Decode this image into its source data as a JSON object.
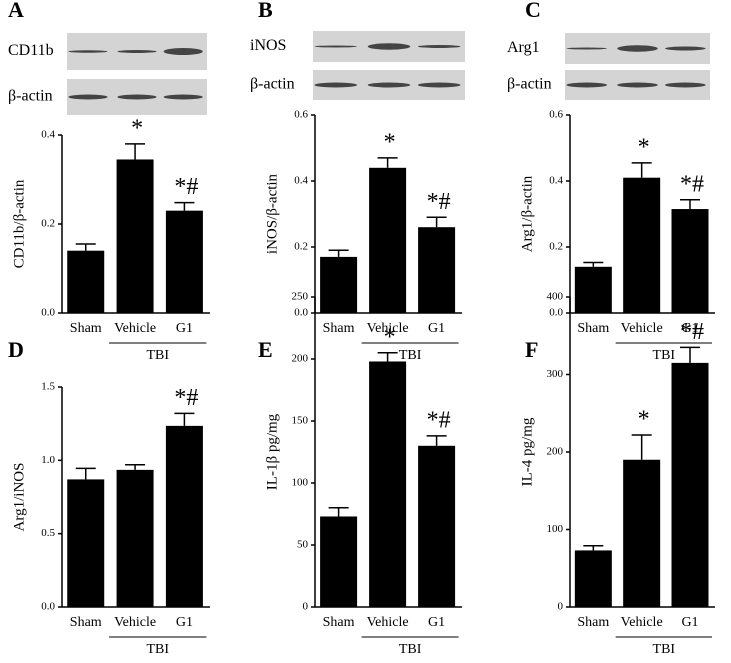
{
  "chart_data": [
    {
      "type": "bar",
      "panel": "A",
      "blot_labels": [
        "CD11b",
        "β-actin"
      ],
      "ylabel": "CD11b/β-actin",
      "categories": [
        "Sham",
        "Vehicle",
        "G1"
      ],
      "values": [
        0.14,
        0.345,
        0.23
      ],
      "errors": [
        0.015,
        0.035,
        0.018
      ],
      "annotations": [
        null,
        "*",
        "*#"
      ],
      "group_label": "TBI",
      "color": "#000000",
      "ylim": [
        0,
        0.4
      ],
      "yticks": [
        {
          "value": 0,
          "label": "0.0"
        },
        0.2,
        0.4
      ]
    },
    {
      "type": "bar",
      "panel": "B",
      "blot_labels": [
        "iNOS",
        "β-actin"
      ],
      "ylabel": "iNOS/β-actin",
      "categories": [
        "Sham",
        "Vehicle",
        "G1"
      ],
      "values": [
        0.17,
        0.44,
        0.26
      ],
      "errors": [
        0.02,
        0.03,
        0.03
      ],
      "annotations": [
        null,
        "*",
        "*#"
      ],
      "group_label": "TBI",
      "color": "#000000",
      "ylim": [
        0,
        0.6
      ],
      "yticks": [
        {
          "value": 0,
          "label": "0.0"
        },
        0.2,
        0.4,
        0.6
      ]
    },
    {
      "type": "bar",
      "panel": "C",
      "blot_labels": [
        "Arg1",
        "β-actin"
      ],
      "ylabel": "Arg1/β-actin",
      "categories": [
        "Sham",
        "Vehicle",
        "G1"
      ],
      "values": [
        0.14,
        0.41,
        0.315
      ],
      "errors": [
        0.013,
        0.045,
        0.028
      ],
      "annotations": [
        null,
        "*",
        "*#"
      ],
      "group_label": "TBI",
      "color": "#000000",
      "ylim": [
        0,
        0.6
      ],
      "yticks": [
        {
          "value": 0,
          "label": "0.0"
        },
        0.2,
        0.4,
        0.6
      ]
    },
    {
      "type": "bar",
      "panel": "D",
      "ylabel": "Arg1/iNOS",
      "categories": [
        "Sham",
        "Vehicle",
        "G1"
      ],
      "values": [
        0.87,
        0.935,
        1.235
      ],
      "errors": [
        0.075,
        0.035,
        0.085
      ],
      "annotations": [
        null,
        null,
        "*#"
      ],
      "group_label": "TBI",
      "color": "#000000",
      "ylim": [
        0,
        1.5
      ],
      "yticks": [
        {
          "value": 0,
          "label": "0.0"
        },
        0.5,
        {
          "value": 1,
          "label": "1.0"
        },
        1.5
      ]
    },
    {
      "type": "bar",
      "panel": "E",
      "ylabel": "IL-1β pg/mg",
      "categories": [
        "Sham",
        "Vehicle",
        "G1"
      ],
      "values": [
        73,
        198,
        130
      ],
      "errors": [
        7,
        7,
        8
      ],
      "annotations": [
        null,
        "*",
        "*#"
      ],
      "group_label": "TBI",
      "color": "#000000",
      "ylim": [
        0,
        250
      ],
      "yticks": [
        0,
        50,
        100,
        150,
        200,
        250
      ]
    },
    {
      "type": "bar",
      "panel": "F",
      "ylabel": "IL-4 pg/mg",
      "categories": [
        "Sham",
        "Vehicle",
        "G1"
      ],
      "values": [
        73,
        190,
        315
      ],
      "errors": [
        6,
        32,
        20
      ],
      "annotations": [
        null,
        "*",
        "*#"
      ],
      "group_label": "TBI",
      "color": "#000000",
      "ylim": [
        0,
        400
      ],
      "yticks": [
        0,
        100,
        200,
        300,
        400
      ]
    }
  ]
}
